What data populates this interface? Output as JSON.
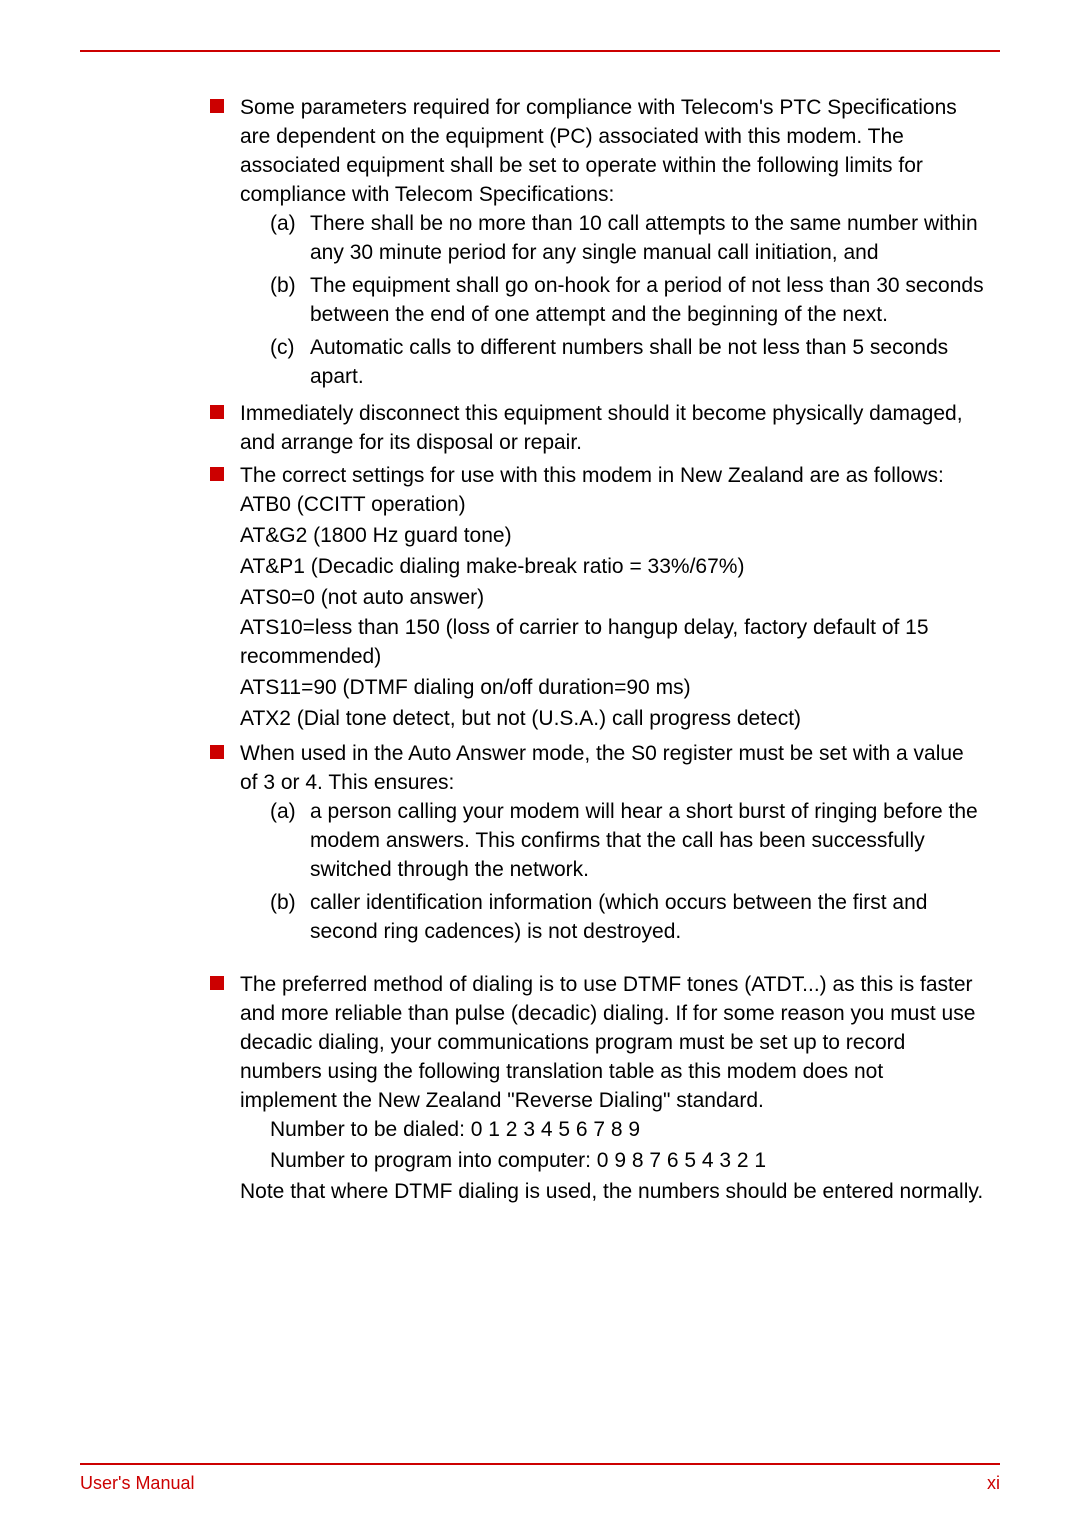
{
  "bullet1": {
    "intro": "Some parameters required for compliance with Telecom's PTC Specifications are dependent on the equipment (PC) associated with this modem. The associated equipment shall be set to operate within the following limits for compliance with Telecom Specifications:",
    "a_label": "(a)",
    "a": "There shall be no more than 10 call attempts to the same number within any 30 minute period for any single manual call initiation, and",
    "b_label": "(b)",
    "b": "The equipment shall go on-hook for a period of not less than 30 seconds between the end of one attempt and the beginning of the next.",
    "c_label": "(c)",
    "c": "Automatic calls to different numbers shall be not less than 5 seconds apart."
  },
  "bullet2": "Immediately disconnect this equipment should it become physically damaged, and arrange for its disposal or repair.",
  "bullet3": {
    "intro": "The correct settings for use with this modem in New Zealand are as follows:",
    "s1": "ATB0 (CCITT operation)",
    "s2": "AT&G2 (1800 Hz guard tone)",
    "s3": "AT&P1 (Decadic dialing make-break ratio = 33%/67%)",
    "s4": "ATS0=0 (not auto answer)",
    "s5": "ATS10=less than 150 (loss of carrier to hangup delay, factory default of 15 recommended)",
    "s6": "ATS11=90 (DTMF dialing on/off duration=90 ms)",
    "s7": "ATX2 (Dial tone detect, but not (U.S.A.) call progress detect)"
  },
  "bullet4": {
    "intro": "When used in the Auto Answer mode, the S0 register must be set with a value of 3 or 4. This ensures:",
    "a_label": "(a)",
    "a": "a person calling your modem will hear a short burst of ringing before the modem answers. This confirms that the call has been successfully switched through the network.",
    "b_label": "(b)",
    "b": "caller identification information (which occurs between the first and second ring cadences) is not destroyed."
  },
  "bullet5": {
    "intro": "The preferred method of dialing is to use DTMF tones (ATDT...) as this is faster and more reliable than pulse (decadic) dialing. If for some reason you must use decadic dialing, your communications program must be set up to record numbers using the following translation table as this modem does not implement the New Zealand \"Reverse Dialing\" standard.",
    "n1": "Number to be dialed: 0 1 2 3 4 5 6 7 8 9",
    "n2": "Number to program into computer: 0 9 8 7 6 5 4 3 2 1",
    "note": "Note that where DTMF dialing is used, the numbers should be entered normally."
  },
  "footer": {
    "left": "User's Manual",
    "right": "xi"
  },
  "colors": {
    "accent": "#cc0000",
    "text": "#000000",
    "background": "#ffffff"
  }
}
